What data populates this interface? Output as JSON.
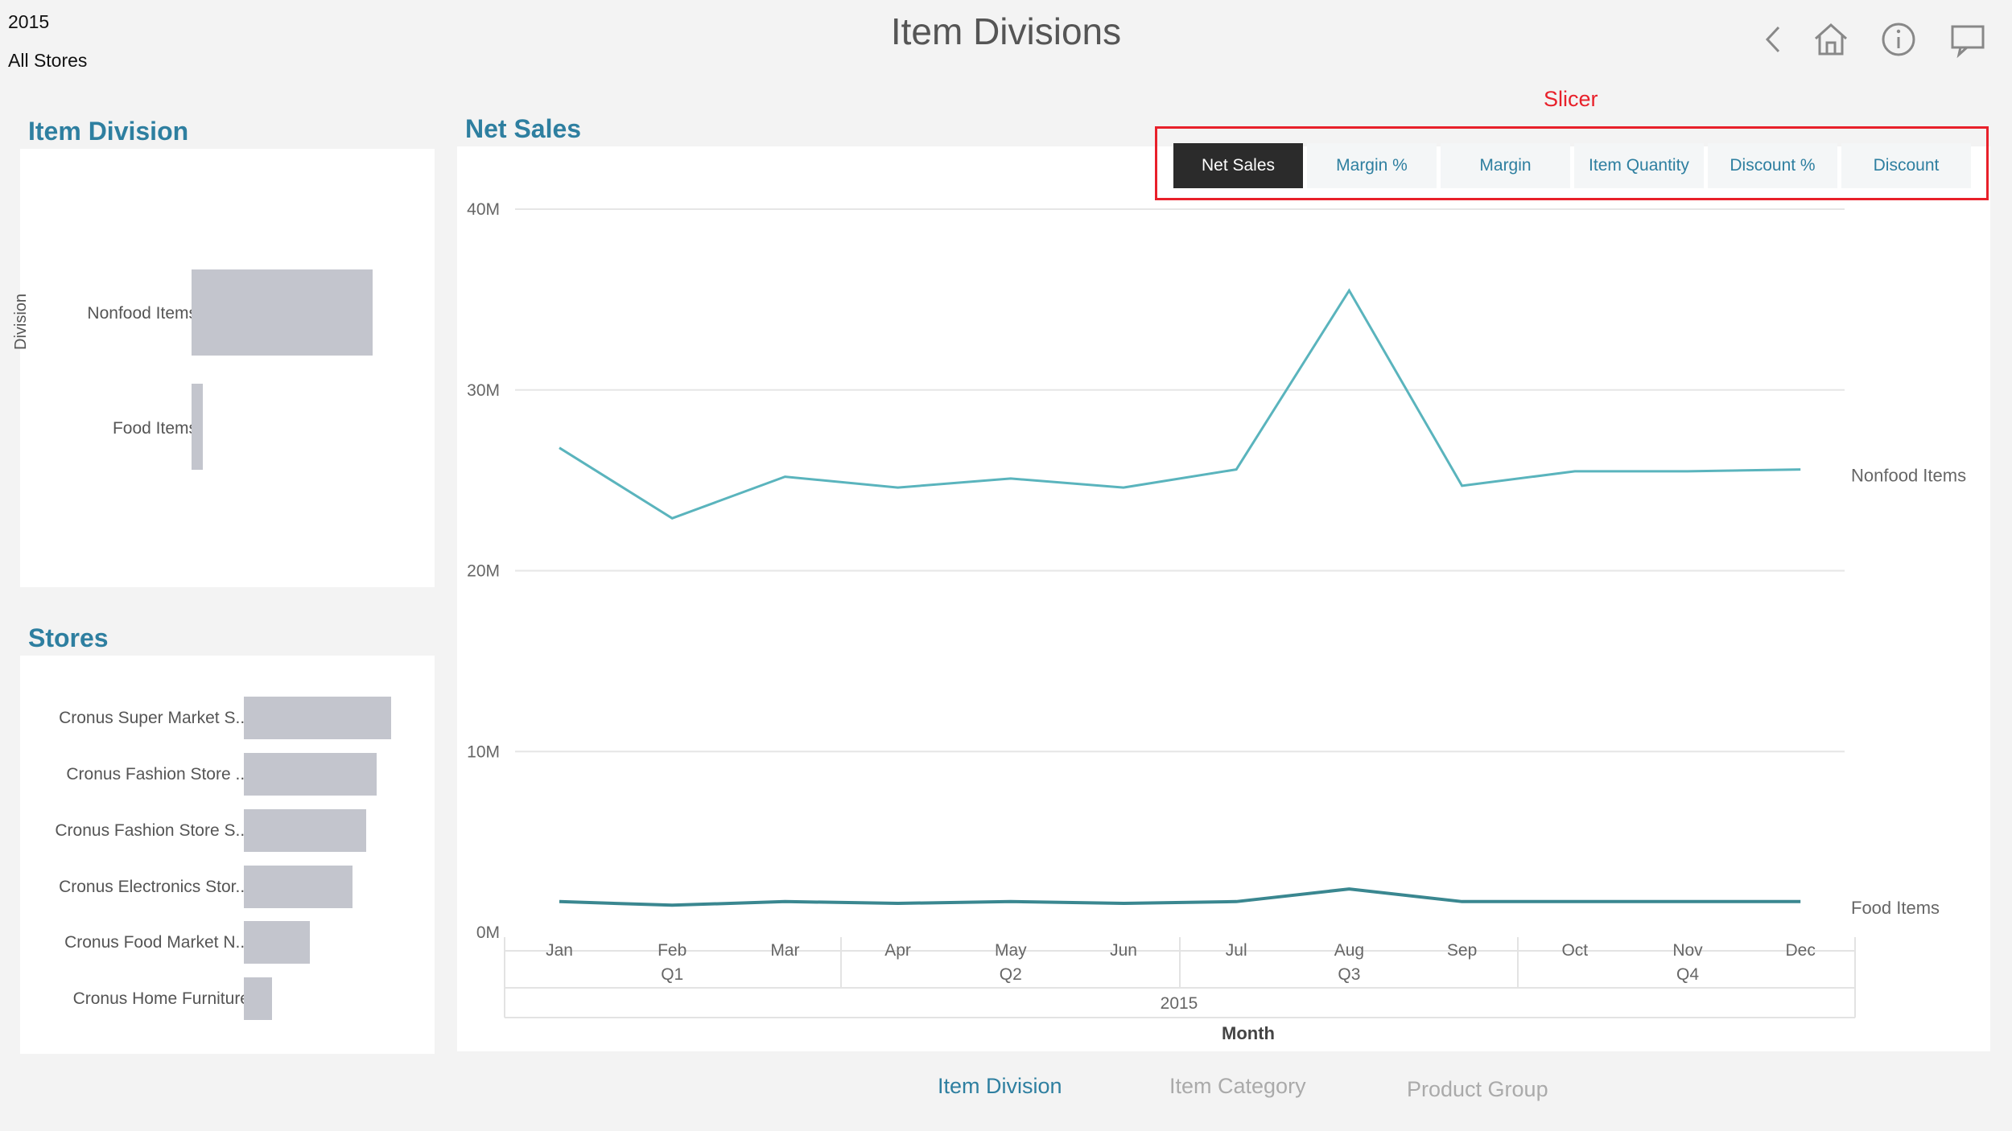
{
  "context": {
    "year": "2015",
    "store_filter": "All Stores"
  },
  "header": {
    "title": "Item Divisions",
    "icons": [
      "back-icon",
      "home-icon",
      "info-icon",
      "comment-icon"
    ]
  },
  "item_division_panel": {
    "title": "Item Division",
    "axis_label": "Division",
    "items": [
      {
        "label": "Nonfood Items",
        "value": 1.0
      },
      {
        "label": "Food Items",
        "value": 0.064
      }
    ]
  },
  "stores_panel": {
    "title": "Stores",
    "items": [
      {
        "label": "Cronus Super Market S...",
        "value": 1.0
      },
      {
        "label": "Cronus Fashion Store ...",
        "value": 0.9
      },
      {
        "label": "Cronus Fashion Store S...",
        "value": 0.83
      },
      {
        "label": "Cronus Electronics Stor...",
        "value": 0.74
      },
      {
        "label": "Cronus Food Market N...",
        "value": 0.45
      },
      {
        "label": "Cronus Home Furniture",
        "value": 0.19
      }
    ]
  },
  "slicer": {
    "annotation": "Slicer",
    "buttons": [
      {
        "label": "Net Sales",
        "active": true
      },
      {
        "label": "Margin %",
        "active": false
      },
      {
        "label": "Margin",
        "active": false
      },
      {
        "label": "Item Quantity",
        "active": false
      },
      {
        "label": "Discount %",
        "active": false
      },
      {
        "label": "Discount",
        "active": false
      }
    ]
  },
  "colors": {
    "accent": "#2e7fa0",
    "nonfood_line": "#5ab4bd",
    "food_line": "#3a8790",
    "slicer_outline": "#e8202a",
    "annotation": "#e8202a"
  },
  "chart_data": {
    "type": "line",
    "title": "Net Sales",
    "x": [
      "Jan",
      "Feb",
      "Mar",
      "Apr",
      "May",
      "Jun",
      "Jul",
      "Aug",
      "Sep",
      "Oct",
      "Nov",
      "Dec"
    ],
    "quarters": [
      "Q1",
      "Q2",
      "Q3",
      "Q4"
    ],
    "year_label": "2015",
    "xlabel": "Month",
    "ylabel": "",
    "yticks": [
      "0M",
      "10M",
      "20M",
      "30M",
      "40M"
    ],
    "ylim": [
      0,
      40
    ],
    "grid": true,
    "series": [
      {
        "name": "Nonfood Items",
        "values": [
          26.8,
          22.9,
          25.2,
          24.6,
          25.1,
          24.6,
          25.6,
          35.5,
          24.7,
          25.5,
          25.5,
          25.6
        ]
      },
      {
        "name": "Food Items",
        "values": [
          1.7,
          1.5,
          1.7,
          1.6,
          1.7,
          1.6,
          1.7,
          2.4,
          1.7,
          1.7,
          1.7,
          1.7
        ]
      }
    ]
  },
  "bottom_tabs": [
    {
      "label": "Item Division",
      "active": true
    },
    {
      "label": "Item Category",
      "active": false
    },
    {
      "label": "Product Group",
      "active": false
    }
  ]
}
